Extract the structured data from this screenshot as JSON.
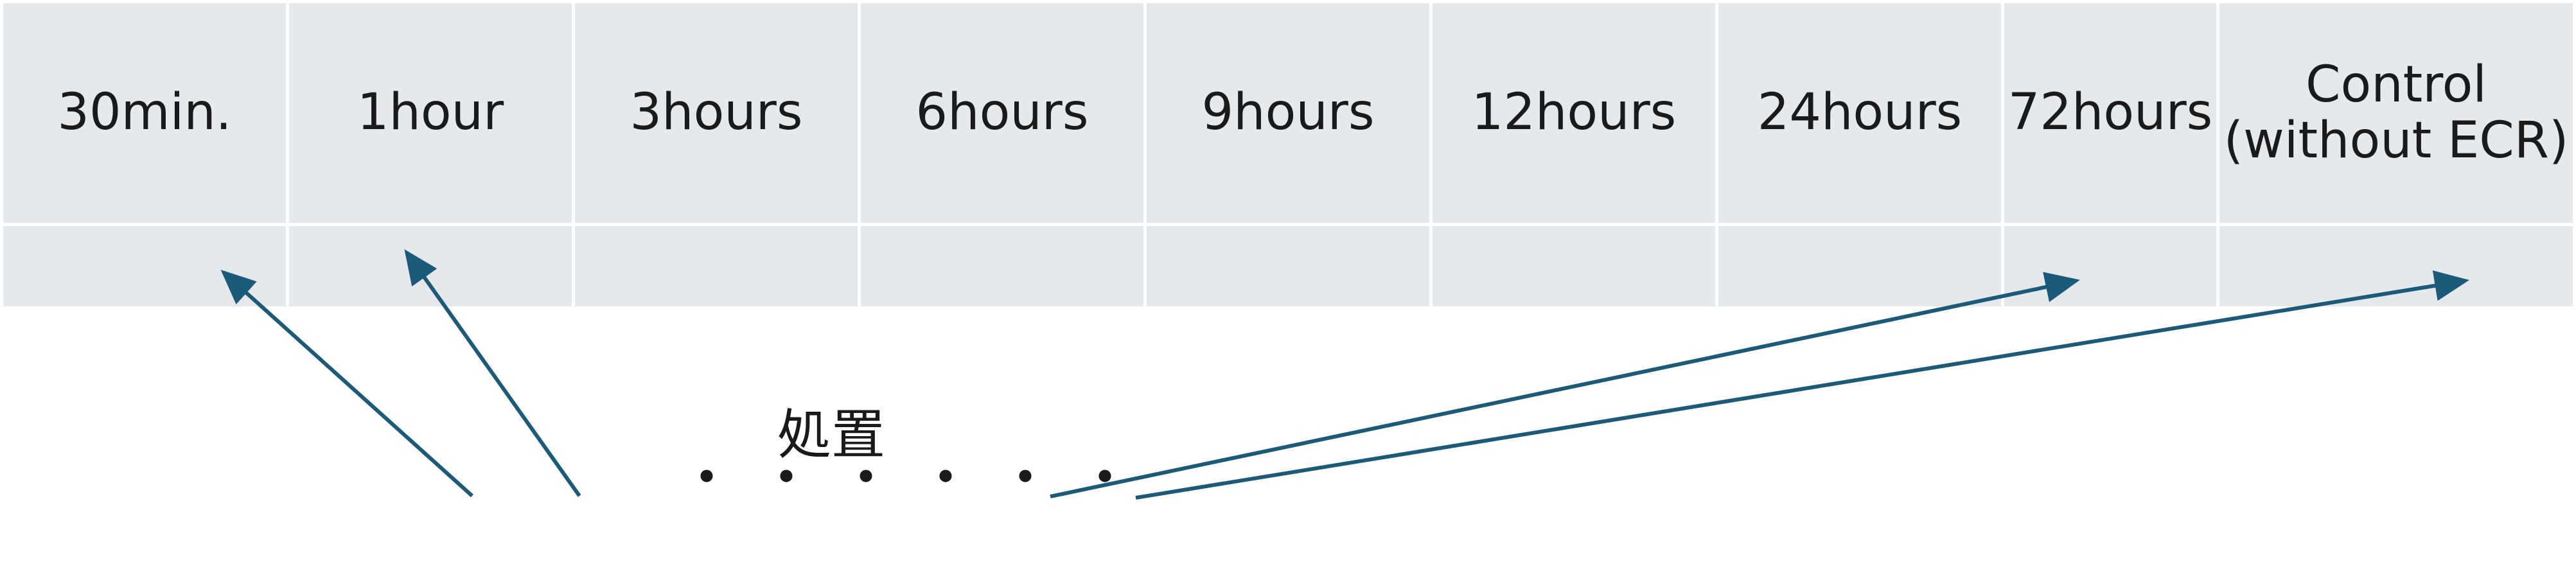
{
  "header": {
    "columns": [
      {
        "label": "30min."
      },
      {
        "label": "1hour"
      },
      {
        "label": "3hours"
      },
      {
        "label": "6hours"
      },
      {
        "label": "9hours"
      },
      {
        "label": "12hours"
      },
      {
        "label": "24hours"
      },
      {
        "label": "72hours"
      },
      {
        "label": "Control\n(without ECR)"
      }
    ]
  },
  "diagram": {
    "caption": "処置",
    "ellipsis": "・・・・・・",
    "colors": {
      "cell_fill": "#e6e9ec",
      "arrow": "#1b5a78",
      "grid_line": "#ffffff"
    }
  }
}
